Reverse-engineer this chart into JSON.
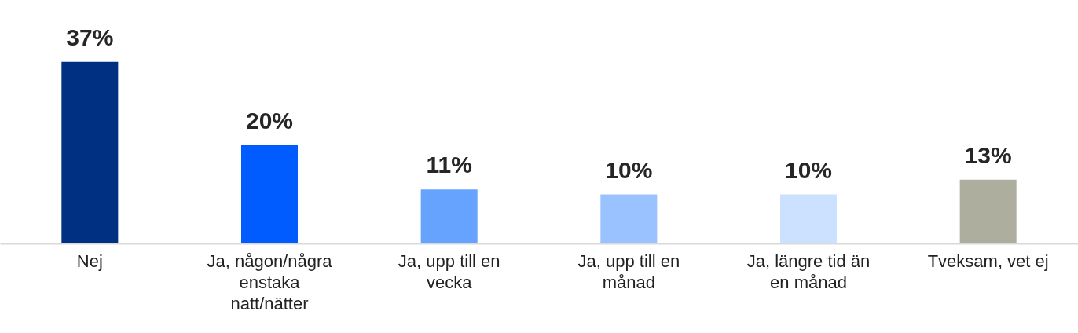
{
  "chart_data": {
    "type": "bar",
    "categories": [
      "Nej",
      "Ja, någon/några enstaka natt/nätter",
      "Ja, upp till en vecka",
      "Ja, upp till en månad",
      "Ja, längre tid än en månad",
      "Tveksam, vet ej"
    ],
    "values": [
      37,
      20,
      11,
      10,
      10,
      13
    ],
    "colors": [
      "#003082",
      "#005cff",
      "#66a3ff",
      "#99c2ff",
      "#cce0ff",
      "#aeae9e"
    ],
    "value_labels": [
      "37%",
      "20%",
      "11%",
      "10%",
      "10%",
      "13%"
    ]
  }
}
